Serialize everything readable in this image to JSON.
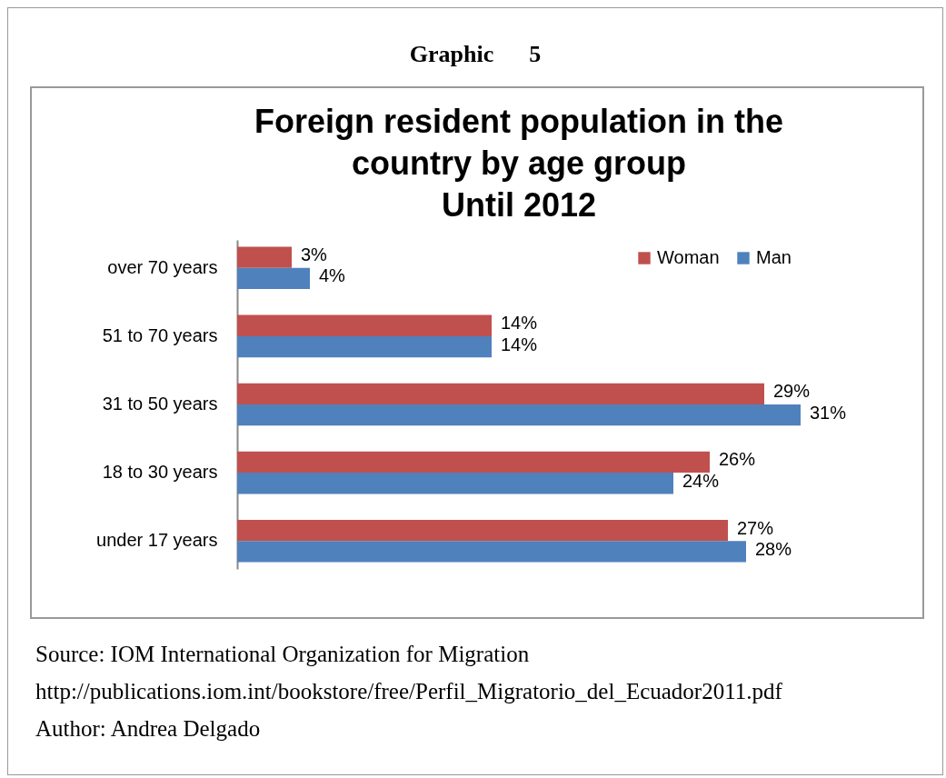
{
  "chart_data": {
    "type": "bar",
    "orientation": "horizontal",
    "title": "Foreign resident population in the\ncountry by age group\nUntil 2012",
    "categories": [
      "over 70 years",
      "51 to 70 years",
      "31 to 50 years",
      "18 to 30 years",
      "under 17 years"
    ],
    "series": [
      {
        "name": "Woman",
        "color": "#c0504d",
        "values": [
          3,
          14,
          29,
          26,
          27
        ],
        "value_labels": [
          "3%",
          "14%",
          "29%",
          "26%",
          "27%"
        ]
      },
      {
        "name": "Man",
        "color": "#4f81bd",
        "values": [
          4,
          14,
          31,
          24,
          28
        ],
        "value_labels": [
          "4%",
          "14%",
          "31%",
          "24%",
          "28%"
        ]
      }
    ],
    "legend": "top right",
    "grid": false,
    "annotations": [
      "Graphic      5",
      "Source: IOM International Organization for Migration",
      "http://publications.iom.int/bookstore/free/Perfil_Migratorio_del_Ecuador2011.pdf",
      "Author: Andrea Delgado"
    ]
  }
}
